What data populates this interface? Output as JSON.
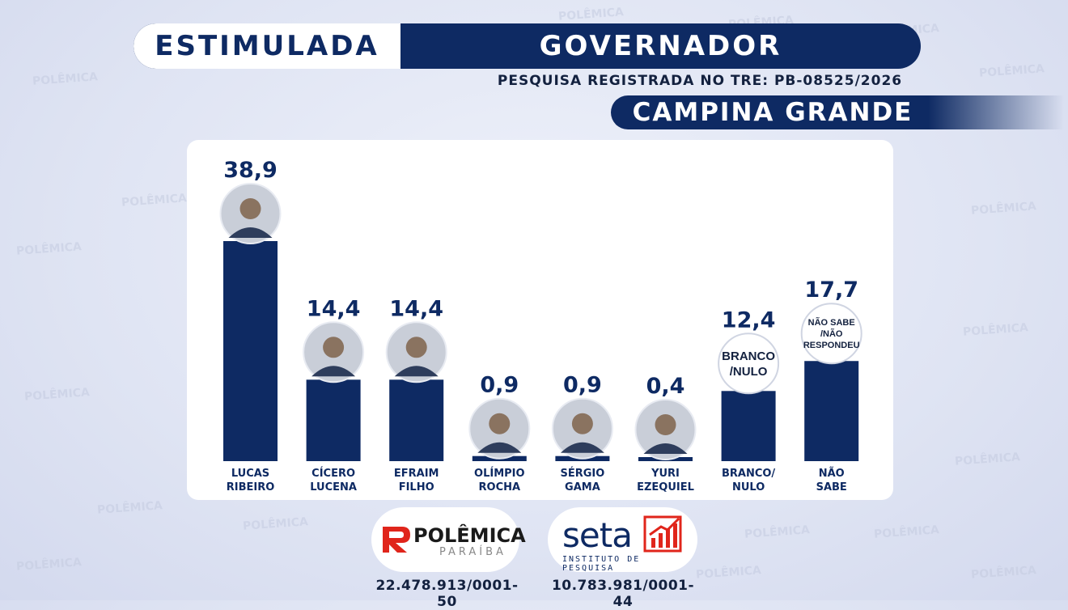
{
  "header": {
    "tag": "ESTIMULADA",
    "title": "GOVERNADOR",
    "registration": "PESQUISA REGISTRADA NO TRE: PB-08525/2026",
    "city": "CAMPINA GRANDE"
  },
  "watermark": {
    "line1": "POLÊMICA",
    "line2": "PARAÍBA"
  },
  "colors": {
    "bar": "#0e2a63",
    "label": "#0e2a63"
  },
  "chart_data": {
    "type": "bar",
    "categories": [
      "LUCAS RIBEIRO",
      "CÍCERO LUCENA",
      "EFRAIM FILHO",
      "OLÍMPIO ROCHA",
      "SÉRGIO GAMA",
      "YURI EZEQUIEL",
      "BRANCO/ NULO",
      "NÃO SABE"
    ],
    "category_lines": [
      [
        "LUCAS",
        "RIBEIRO"
      ],
      [
        "CÍCERO",
        "LUCENA"
      ],
      [
        "EFRAIM",
        "FILHO"
      ],
      [
        "OLÍMPIO",
        "ROCHA"
      ],
      [
        "SÉRGIO",
        "GAMA"
      ],
      [
        "YURI",
        "EZEQUIEL"
      ],
      [
        "BRANCO/",
        "NULO"
      ],
      [
        "NÃO",
        "SABE"
      ]
    ],
    "values": [
      38.9,
      14.4,
      14.4,
      0.9,
      0.9,
      0.4,
      12.4,
      17.7
    ],
    "value_labels": [
      "38,9",
      "14,4",
      "14,4",
      "0,9",
      "0,9",
      "0,4",
      "12,4",
      "17,7"
    ],
    "badges": [
      null,
      null,
      null,
      null,
      null,
      null,
      [
        "BRANCO",
        "/NULO"
      ],
      [
        "NÃO SABE",
        "/NÃO",
        "RESPONDEU"
      ]
    ],
    "ylim": [
      0,
      38.9
    ]
  },
  "footer": {
    "logo1_word": "POLÊMICA",
    "logo1_sub": "PARAÍBA",
    "logo2_word": "seta",
    "logo2_sub": "INSTITUTO DE PESQUISA",
    "cnpj1": "22.478.913/0001-50",
    "cnpj2": "10.783.981/0001-44"
  }
}
